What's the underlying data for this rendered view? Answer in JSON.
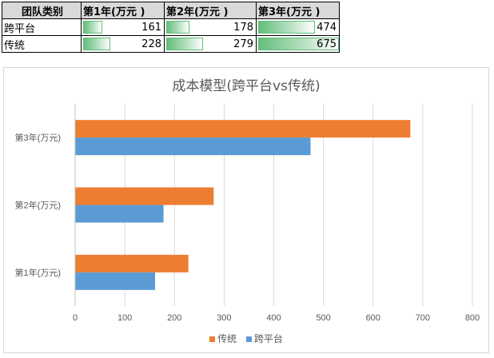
{
  "table": {
    "header": [
      "团队类别",
      "第1年(万元 )",
      "第2年(万元 )",
      "第3年(万元 )"
    ],
    "rows": [
      {
        "label": "跨平台",
        "values": [
          161,
          178,
          474
        ]
      },
      {
        "label": "传统",
        "values": [
          228,
          279,
          675
        ]
      }
    ],
    "databar_color": "#63be7b"
  },
  "chart_data": {
    "type": "bar",
    "orientation": "horizontal",
    "title": "成本模型(跨平台vs传统)",
    "categories": [
      "第1年(万元)",
      "第2年(万元)",
      "第3年(万元)"
    ],
    "series": [
      {
        "name": "传统",
        "values": [
          228,
          279,
          675
        ],
        "color": "#ed7d31"
      },
      {
        "name": "跨平台",
        "values": [
          161,
          178,
          474
        ],
        "color": "#5b9bd5"
      }
    ],
    "xlim": [
      0,
      800
    ],
    "xticks": [
      0,
      100,
      200,
      300,
      400,
      500,
      600,
      700,
      800
    ],
    "grid": "vertical",
    "legend_position": "bottom"
  }
}
